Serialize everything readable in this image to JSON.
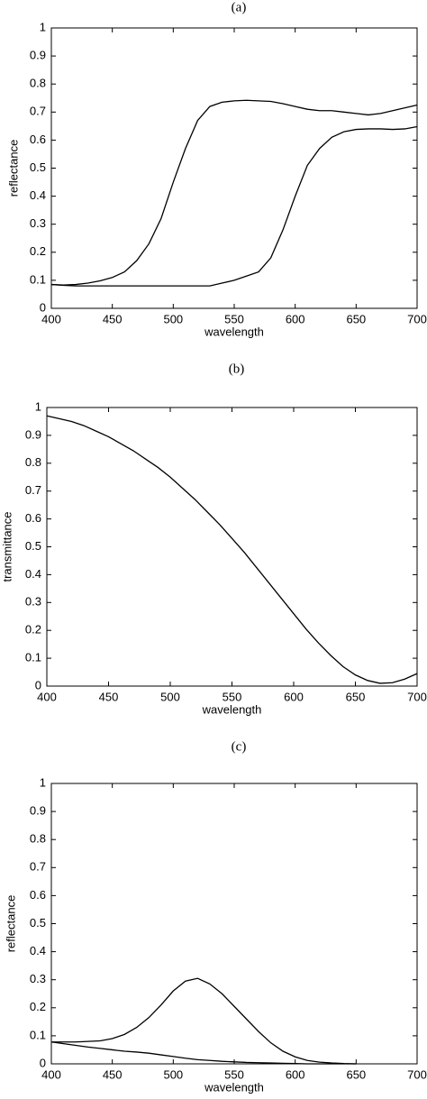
{
  "chart_data": [
    {
      "type": "line",
      "title": "(a)",
      "xlabel": "wavelength",
      "ylabel": "reflectance",
      "x": [
        400,
        410,
        420,
        430,
        440,
        450,
        460,
        470,
        480,
        490,
        500,
        510,
        520,
        530,
        540,
        550,
        560,
        570,
        580,
        590,
        600,
        610,
        620,
        630,
        640,
        650,
        660,
        670,
        680,
        690,
        700
      ],
      "series": [
        {
          "color": "#000000",
          "values": [
            0.085,
            0.083,
            0.085,
            0.09,
            0.098,
            0.11,
            0.13,
            0.17,
            0.23,
            0.32,
            0.45,
            0.57,
            0.67,
            0.72,
            0.735,
            0.74,
            0.742,
            0.74,
            0.738,
            0.73,
            0.72,
            0.71,
            0.705,
            0.705,
            0.7,
            0.695,
            0.69,
            0.695,
            0.705,
            0.715,
            0.725
          ]
        },
        {
          "color": "#000000",
          "values": [
            0.085,
            0.082,
            0.08,
            0.08,
            0.08,
            0.08,
            0.08,
            0.08,
            0.08,
            0.08,
            0.08,
            0.08,
            0.08,
            0.08,
            0.09,
            0.1,
            0.115,
            0.13,
            0.18,
            0.28,
            0.4,
            0.51,
            0.57,
            0.61,
            0.63,
            0.638,
            0.64,
            0.64,
            0.638,
            0.64,
            0.648
          ]
        }
      ],
      "xlim": [
        400,
        700
      ],
      "xticks": [
        400,
        450,
        500,
        550,
        600,
        650,
        700
      ],
      "ylim": [
        0,
        1
      ],
      "yticks": [
        0,
        0.1,
        0.2,
        0.3,
        0.4,
        0.5,
        0.6,
        0.7,
        0.8,
        0.9,
        1
      ]
    },
    {
      "type": "line",
      "title": "(b)",
      "xlabel": "wavelength",
      "ylabel": "transmittance",
      "x": [
        400,
        410,
        420,
        430,
        440,
        450,
        460,
        470,
        480,
        490,
        500,
        510,
        520,
        530,
        540,
        550,
        560,
        570,
        580,
        590,
        600,
        610,
        620,
        630,
        640,
        650,
        660,
        670,
        680,
        690,
        700
      ],
      "series": [
        {
          "color": "#000000",
          "values": [
            0.97,
            0.96,
            0.95,
            0.935,
            0.915,
            0.895,
            0.87,
            0.845,
            0.815,
            0.785,
            0.75,
            0.71,
            0.67,
            0.625,
            0.58,
            0.53,
            0.48,
            0.425,
            0.37,
            0.315,
            0.26,
            0.205,
            0.155,
            0.11,
            0.07,
            0.04,
            0.02,
            0.01,
            0.012,
            0.025,
            0.045
          ]
        }
      ],
      "xlim": [
        400,
        700
      ],
      "xticks": [
        400,
        450,
        500,
        550,
        600,
        650,
        700
      ],
      "ylim": [
        0,
        1
      ],
      "yticks": [
        0,
        0.1,
        0.2,
        0.3,
        0.4,
        0.5,
        0.6,
        0.7,
        0.8,
        0.9,
        1
      ]
    },
    {
      "type": "line",
      "title": "(c)",
      "xlabel": "wavelength",
      "ylabel": "reflectance",
      "x": [
        400,
        410,
        420,
        430,
        440,
        450,
        460,
        470,
        480,
        490,
        500,
        510,
        520,
        530,
        540,
        550,
        560,
        570,
        580,
        590,
        600,
        610,
        620,
        630,
        640,
        650,
        660,
        670,
        680,
        690,
        700
      ],
      "series": [
        {
          "color": "#000000",
          "values": [
            0.078,
            0.078,
            0.078,
            0.08,
            0.082,
            0.09,
            0.105,
            0.13,
            0.165,
            0.21,
            0.26,
            0.295,
            0.305,
            0.285,
            0.25,
            0.205,
            0.16,
            0.115,
            0.075,
            0.045,
            0.025,
            0.012,
            0.006,
            0.003,
            0.001,
            0,
            null,
            null,
            null,
            null,
            null
          ]
        },
        {
          "color": "#000000",
          "values": [
            0.078,
            0.072,
            0.066,
            0.06,
            0.055,
            0.05,
            0.045,
            0.042,
            0.038,
            0.032,
            0.026,
            0.02,
            0.015,
            0.012,
            0.009,
            0.007,
            0.005,
            0.004,
            0.003,
            0.002,
            0.001,
            0,
            0,
            0,
            0,
            0,
            null,
            null,
            null,
            null,
            null
          ]
        }
      ],
      "xlim": [
        400,
        700
      ],
      "xticks": [
        400,
        450,
        500,
        550,
        600,
        650,
        700
      ],
      "ylim": [
        0,
        1
      ],
      "yticks": [
        0,
        0.1,
        0.2,
        0.3,
        0.4,
        0.5,
        0.6,
        0.7,
        0.8,
        0.9,
        1
      ]
    }
  ]
}
